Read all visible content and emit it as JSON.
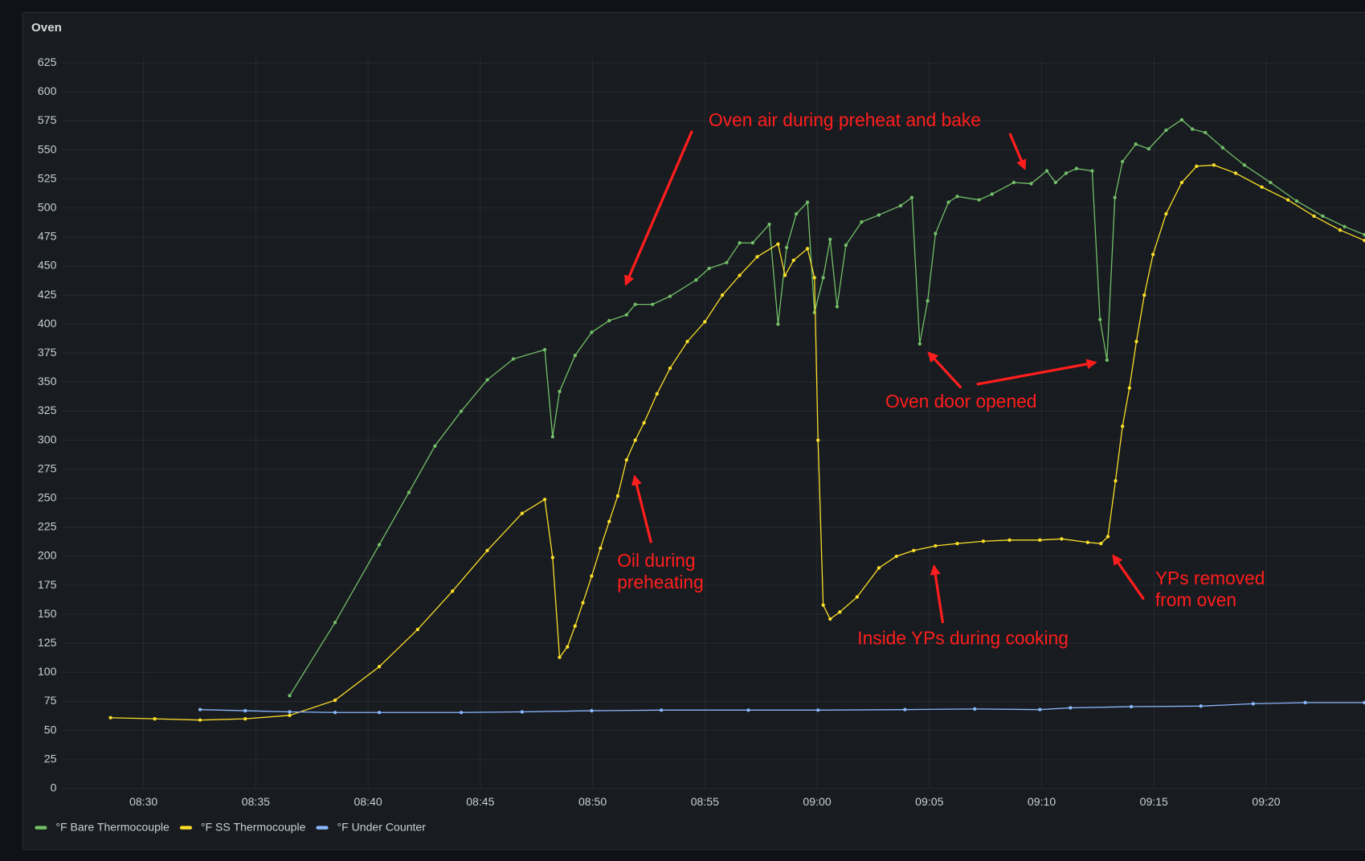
{
  "chart_data": {
    "type": "line",
    "title": "Oven",
    "xlim": [
      506.4,
      564.4
    ],
    "xticks": [
      {
        "value": 510,
        "label": "08:30"
      },
      {
        "value": 515,
        "label": "08:35"
      },
      {
        "value": 520,
        "label": "08:40"
      },
      {
        "value": 525,
        "label": "08:45"
      },
      {
        "value": 530,
        "label": "08:50"
      },
      {
        "value": 535,
        "label": "08:55"
      },
      {
        "value": 540,
        "label": "09:00"
      },
      {
        "value": 545,
        "label": "09:05"
      },
      {
        "value": 550,
        "label": "09:10"
      },
      {
        "value": 555,
        "label": "09:15"
      },
      {
        "value": 560,
        "label": "09:20"
      }
    ],
    "ylim": [
      0,
      625
    ],
    "yticks": [
      0,
      25,
      50,
      75,
      100,
      125,
      150,
      175,
      200,
      225,
      250,
      275,
      300,
      325,
      350,
      375,
      400,
      425,
      450,
      475,
      500,
      525,
      550,
      575,
      600,
      625
    ],
    "grid": true,
    "legend": "bottom-left",
    "series": [
      {
        "name": "°F Bare Thermocouple",
        "color": "#73bf69",
        "x": [
          516.51,
          518.53,
          520.5,
          521.82,
          522.98,
          524.15,
          525.31,
          526.47,
          527.87,
          528.22,
          528.53,
          529.22,
          529.96,
          530.74,
          531.51,
          531.9,
          532.67,
          533.45,
          534.61,
          535.19,
          535.97,
          536.55,
          537.13,
          537.87,
          538.26,
          538.64,
          539.07,
          539.57,
          539.88,
          540.27,
          540.58,
          540.89,
          541.28,
          541.98,
          542.75,
          543.72,
          544.22,
          544.57,
          544.92,
          545.27,
          545.85,
          546.24,
          547.21,
          547.79,
          548.76,
          549.53,
          550.23,
          550.62,
          551.09,
          551.55,
          552.25,
          552.6,
          552.91,
          553.26,
          553.6,
          554.19,
          554.77,
          555.54,
          556.24,
          556.71,
          557.29,
          558.06,
          559.03,
          560.19,
          561.36,
          562.52,
          563.49,
          564.38
        ],
        "values": [
          80,
          143,
          210,
          255,
          295,
          325,
          352,
          370,
          378,
          303,
          342,
          373,
          393,
          403,
          408,
          417,
          417,
          424,
          438,
          448,
          453,
          470,
          470,
          486,
          400,
          466,
          495,
          505,
          410,
          440,
          473,
          415,
          468,
          488,
          494,
          502,
          509,
          383,
          420,
          478,
          505,
          510,
          507,
          512,
          522,
          521,
          532,
          522,
          530,
          534,
          532,
          404,
          369,
          509,
          540,
          555,
          551,
          567,
          576,
          568,
          565,
          552,
          537,
          522,
          506,
          493,
          484,
          477
        ]
      },
      {
        "name": "°F SS Thermocouple",
        "color": "#fade2a",
        "x": [
          508.53,
          510.5,
          512.52,
          514.53,
          516.51,
          518.53,
          520.5,
          522.21,
          523.76,
          525.31,
          526.86,
          527.87,
          528.22,
          528.53,
          528.88,
          529.22,
          529.57,
          529.96,
          530.35,
          530.74,
          531.12,
          531.51,
          531.9,
          532.29,
          532.87,
          533.45,
          534.22,
          535.0,
          535.78,
          536.55,
          537.33,
          538.26,
          538.57,
          538.95,
          539.57,
          539.88,
          540.04,
          540.27,
          540.58,
          541.01,
          541.78,
          542.75,
          543.53,
          544.3,
          545.27,
          546.24,
          547.4,
          548.57,
          549.92,
          550.89,
          552.05,
          552.64,
          552.95,
          553.29,
          553.6,
          553.91,
          554.22,
          554.57,
          554.96,
          555.54,
          556.24,
          556.9,
          557.67,
          558.64,
          559.81,
          560.97,
          562.13,
          563.29,
          564.38
        ],
        "values": [
          61,
          60,
          59,
          60,
          63,
          76,
          105,
          137,
          170,
          205,
          237,
          249,
          199,
          113,
          122,
          140,
          160,
          183,
          207,
          230,
          252,
          283,
          300,
          315,
          340,
          362,
          385,
          402,
          425,
          442,
          458,
          469,
          442,
          455,
          465,
          440,
          300,
          158,
          146,
          152,
          165,
          190,
          200,
          205,
          209,
          211,
          213,
          214,
          214,
          215,
          212,
          211,
          217,
          265,
          312,
          345,
          385,
          425,
          460,
          495,
          522,
          536,
          537,
          530,
          518,
          507,
          493,
          481,
          472
        ]
      },
      {
        "name": "°F Under Counter",
        "color": "#8ab8ff",
        "x": [
          512.52,
          514.53,
          516.51,
          518.53,
          520.5,
          524.15,
          526.86,
          529.96,
          533.06,
          536.94,
          540.04,
          543.91,
          547.02,
          549.92,
          551.28,
          553.99,
          557.09,
          559.42,
          561.74,
          564.38
        ],
        "values": [
          68,
          67,
          66,
          65.5,
          65.5,
          65.5,
          66,
          67,
          67.5,
          67.5,
          67.5,
          68,
          68.5,
          68,
          69.5,
          70.5,
          71,
          73,
          74,
          74
        ]
      }
    ],
    "annotations": [
      {
        "lines": [
          "Oven air during preheat and bake"
        ]
      },
      {
        "lines": [
          "Oven door opened"
        ]
      },
      {
        "lines": [
          "Oil during",
          "preheating"
        ]
      },
      {
        "lines": [
          "Inside YPs during cooking"
        ]
      },
      {
        "lines": [
          "YPs removed",
          "from oven"
        ]
      }
    ]
  }
}
